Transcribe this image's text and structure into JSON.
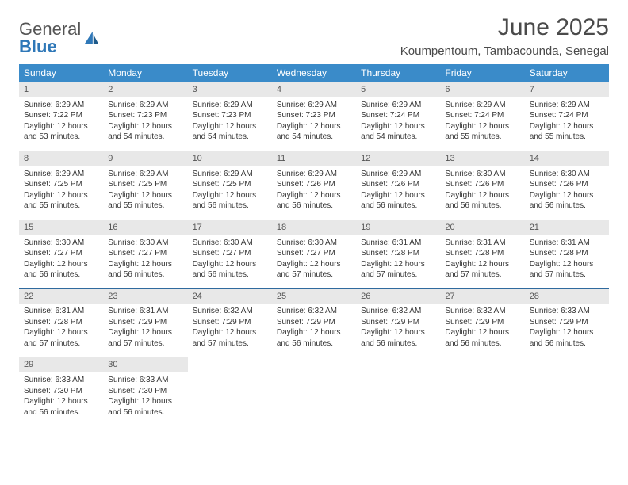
{
  "logo": {
    "general": "General",
    "blue": "Blue"
  },
  "title": "June 2025",
  "location": "Koumpentoum, Tambacounda, Senegal",
  "colors": {
    "header_bg": "#3a8bc9",
    "header_text": "#ffffff",
    "daynum_bg": "#e8e8e8",
    "daynum_border": "#2f6a9e",
    "logo_blue": "#2f78b8",
    "text": "#333333"
  },
  "weekdays": [
    "Sunday",
    "Monday",
    "Tuesday",
    "Wednesday",
    "Thursday",
    "Friday",
    "Saturday"
  ],
  "weeks": [
    [
      {
        "n": "1",
        "sr": "Sunrise: 6:29 AM",
        "ss": "Sunset: 7:22 PM",
        "dl": "Daylight: 12 hours and 53 minutes."
      },
      {
        "n": "2",
        "sr": "Sunrise: 6:29 AM",
        "ss": "Sunset: 7:23 PM",
        "dl": "Daylight: 12 hours and 54 minutes."
      },
      {
        "n": "3",
        "sr": "Sunrise: 6:29 AM",
        "ss": "Sunset: 7:23 PM",
        "dl": "Daylight: 12 hours and 54 minutes."
      },
      {
        "n": "4",
        "sr": "Sunrise: 6:29 AM",
        "ss": "Sunset: 7:23 PM",
        "dl": "Daylight: 12 hours and 54 minutes."
      },
      {
        "n": "5",
        "sr": "Sunrise: 6:29 AM",
        "ss": "Sunset: 7:24 PM",
        "dl": "Daylight: 12 hours and 54 minutes."
      },
      {
        "n": "6",
        "sr": "Sunrise: 6:29 AM",
        "ss": "Sunset: 7:24 PM",
        "dl": "Daylight: 12 hours and 55 minutes."
      },
      {
        "n": "7",
        "sr": "Sunrise: 6:29 AM",
        "ss": "Sunset: 7:24 PM",
        "dl": "Daylight: 12 hours and 55 minutes."
      }
    ],
    [
      {
        "n": "8",
        "sr": "Sunrise: 6:29 AM",
        "ss": "Sunset: 7:25 PM",
        "dl": "Daylight: 12 hours and 55 minutes."
      },
      {
        "n": "9",
        "sr": "Sunrise: 6:29 AM",
        "ss": "Sunset: 7:25 PM",
        "dl": "Daylight: 12 hours and 55 minutes."
      },
      {
        "n": "10",
        "sr": "Sunrise: 6:29 AM",
        "ss": "Sunset: 7:25 PM",
        "dl": "Daylight: 12 hours and 56 minutes."
      },
      {
        "n": "11",
        "sr": "Sunrise: 6:29 AM",
        "ss": "Sunset: 7:26 PM",
        "dl": "Daylight: 12 hours and 56 minutes."
      },
      {
        "n": "12",
        "sr": "Sunrise: 6:29 AM",
        "ss": "Sunset: 7:26 PM",
        "dl": "Daylight: 12 hours and 56 minutes."
      },
      {
        "n": "13",
        "sr": "Sunrise: 6:30 AM",
        "ss": "Sunset: 7:26 PM",
        "dl": "Daylight: 12 hours and 56 minutes."
      },
      {
        "n": "14",
        "sr": "Sunrise: 6:30 AM",
        "ss": "Sunset: 7:26 PM",
        "dl": "Daylight: 12 hours and 56 minutes."
      }
    ],
    [
      {
        "n": "15",
        "sr": "Sunrise: 6:30 AM",
        "ss": "Sunset: 7:27 PM",
        "dl": "Daylight: 12 hours and 56 minutes."
      },
      {
        "n": "16",
        "sr": "Sunrise: 6:30 AM",
        "ss": "Sunset: 7:27 PM",
        "dl": "Daylight: 12 hours and 56 minutes."
      },
      {
        "n": "17",
        "sr": "Sunrise: 6:30 AM",
        "ss": "Sunset: 7:27 PM",
        "dl": "Daylight: 12 hours and 56 minutes."
      },
      {
        "n": "18",
        "sr": "Sunrise: 6:30 AM",
        "ss": "Sunset: 7:27 PM",
        "dl": "Daylight: 12 hours and 57 minutes."
      },
      {
        "n": "19",
        "sr": "Sunrise: 6:31 AM",
        "ss": "Sunset: 7:28 PM",
        "dl": "Daylight: 12 hours and 57 minutes."
      },
      {
        "n": "20",
        "sr": "Sunrise: 6:31 AM",
        "ss": "Sunset: 7:28 PM",
        "dl": "Daylight: 12 hours and 57 minutes."
      },
      {
        "n": "21",
        "sr": "Sunrise: 6:31 AM",
        "ss": "Sunset: 7:28 PM",
        "dl": "Daylight: 12 hours and 57 minutes."
      }
    ],
    [
      {
        "n": "22",
        "sr": "Sunrise: 6:31 AM",
        "ss": "Sunset: 7:28 PM",
        "dl": "Daylight: 12 hours and 57 minutes."
      },
      {
        "n": "23",
        "sr": "Sunrise: 6:31 AM",
        "ss": "Sunset: 7:29 PM",
        "dl": "Daylight: 12 hours and 57 minutes."
      },
      {
        "n": "24",
        "sr": "Sunrise: 6:32 AM",
        "ss": "Sunset: 7:29 PM",
        "dl": "Daylight: 12 hours and 57 minutes."
      },
      {
        "n": "25",
        "sr": "Sunrise: 6:32 AM",
        "ss": "Sunset: 7:29 PM",
        "dl": "Daylight: 12 hours and 56 minutes."
      },
      {
        "n": "26",
        "sr": "Sunrise: 6:32 AM",
        "ss": "Sunset: 7:29 PM",
        "dl": "Daylight: 12 hours and 56 minutes."
      },
      {
        "n": "27",
        "sr": "Sunrise: 6:32 AM",
        "ss": "Sunset: 7:29 PM",
        "dl": "Daylight: 12 hours and 56 minutes."
      },
      {
        "n": "28",
        "sr": "Sunrise: 6:33 AM",
        "ss": "Sunset: 7:29 PM",
        "dl": "Daylight: 12 hours and 56 minutes."
      }
    ],
    [
      {
        "n": "29",
        "sr": "Sunrise: 6:33 AM",
        "ss": "Sunset: 7:30 PM",
        "dl": "Daylight: 12 hours and 56 minutes."
      },
      {
        "n": "30",
        "sr": "Sunrise: 6:33 AM",
        "ss": "Sunset: 7:30 PM",
        "dl": "Daylight: 12 hours and 56 minutes."
      },
      null,
      null,
      null,
      null,
      null
    ]
  ]
}
